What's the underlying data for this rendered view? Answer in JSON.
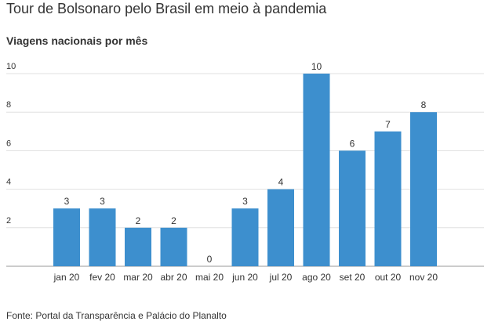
{
  "title": "Tour de Bolsonaro pelo Brasil em meio à pandemia",
  "subtitle": "Viagens nacionais por mês",
  "source": "Fonte: Portal da Transparência e Palácio do Planalto",
  "colors": {
    "bar": "#3d8fce",
    "grid": "#e0e0e0",
    "axis": "#999999"
  },
  "chart_data": {
    "type": "bar",
    "title": "Viagens nacionais por mês",
    "xlabel": "",
    "ylabel": "",
    "ylim": [
      0,
      11
    ],
    "yticks": [
      2,
      4,
      6,
      8,
      10
    ],
    "grid": true,
    "categories": [
      "jan 20",
      "fev 20",
      "mar 20",
      "abr 20",
      "mai 20",
      "jun 20",
      "jul 20",
      "ago 20",
      "set 20",
      "out 20",
      "nov 20"
    ],
    "values": [
      3,
      3,
      2,
      2,
      0,
      3,
      4,
      10,
      6,
      7,
      8
    ]
  }
}
